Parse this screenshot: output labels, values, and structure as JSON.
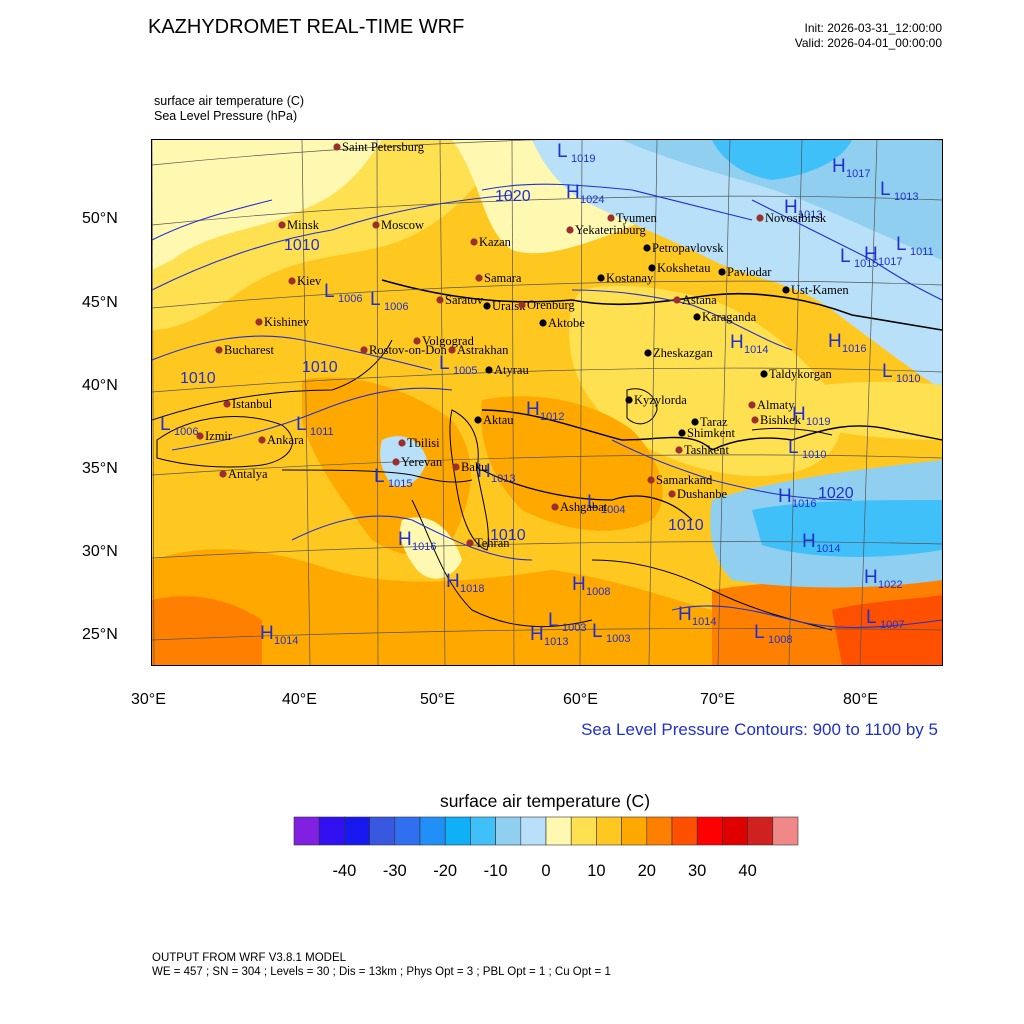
{
  "title": "KAZHYDROMET REAL-TIME WRF",
  "init": "Init: 2026-03-31_12:00:00",
  "valid": "Valid: 2026-04-01_00:00:00",
  "var1": "surface air temperature   (C)",
  "var2": "Sea Level Pressure   (hPa)",
  "lat_ticks": [
    "50°N",
    "45°N",
    "40°N",
    "35°N",
    "30°N",
    "25°N"
  ],
  "lon_ticks": [
    "30°E",
    "40°E",
    "50°E",
    "60°E",
    "70°E",
    "80°E"
  ],
  "contour_note": "Sea Level Pressure Contours: 900 to 1100 by 5",
  "colorbar": {
    "title": "surface air temperature  (C)",
    "colors": [
      "#8020e0",
      "#3010f0",
      "#1818f0",
      "#3858e0",
      "#3070f0",
      "#2090f8",
      "#10b0f8",
      "#40c0f8",
      "#90cff0",
      "#b8e0f8",
      "#fff8b0",
      "#ffe050",
      "#ffc820",
      "#ffa800",
      "#ff8000",
      "#ff5000",
      "#ff0000",
      "#e00000",
      "#d02020",
      "#f08888"
    ],
    "labels": [
      "-40",
      "-30",
      "-20",
      "-10",
      "0",
      "10",
      "20",
      "30",
      "40"
    ]
  },
  "cities": [
    {
      "name": "Saint Petersburg",
      "c": "#9b2f2f"
    },
    {
      "name": "Minsk",
      "c": "#9b2f2f"
    },
    {
      "name": "Moscow",
      "c": "#9b2f2f"
    },
    {
      "name": "Kazan",
      "c": "#9b2f2f"
    },
    {
      "name": "Tyumen",
      "c": "#9b2f2f"
    },
    {
      "name": "Yekaterinburg",
      "c": "#9b2f2f"
    },
    {
      "name": "Novosibirsk",
      "c": "#9b2f2f"
    },
    {
      "name": "Kiev",
      "c": "#9b2f2f"
    },
    {
      "name": "Samara",
      "c": "#9b2f2f"
    },
    {
      "name": "Petropavlovsk",
      "c": "#000"
    },
    {
      "name": "Kostanay",
      "c": "#000"
    },
    {
      "name": "Kokshetau",
      "c": "#000"
    },
    {
      "name": "Pavlodar",
      "c": "#000"
    },
    {
      "name": "Ust-Kamen",
      "c": "#000"
    },
    {
      "name": "Astana",
      "c": "#9b2f2f"
    },
    {
      "name": "Karaganda",
      "c": "#000"
    },
    {
      "name": "Kishinev",
      "c": "#9b2f2f"
    },
    {
      "name": "Saratov",
      "c": "#9b2f2f"
    },
    {
      "name": "Uralsk",
      "c": "#000"
    },
    {
      "name": "Orenburg",
      "c": "#9b2f2f"
    },
    {
      "name": "Aktobe",
      "c": "#000"
    },
    {
      "name": "Bucharest",
      "c": "#9b2f2f"
    },
    {
      "name": "Rostov-on-Don",
      "c": "#9b2f2f"
    },
    {
      "name": "Volgograd",
      "c": "#9b2f2f"
    },
    {
      "name": "Astrakhan",
      "c": "#9b2f2f"
    },
    {
      "name": "Atyrau",
      "c": "#000"
    },
    {
      "name": "Zheskazgan",
      "c": "#000"
    },
    {
      "name": "Taldykorgan",
      "c": "#000"
    },
    {
      "name": "Istanbul",
      "c": "#9b2f2f"
    },
    {
      "name": "Aktau",
      "c": "#000"
    },
    {
      "name": "Kyzylorda",
      "c": "#000"
    },
    {
      "name": "Almaty",
      "c": "#9b2f2f"
    },
    {
      "name": "Izmir",
      "c": "#9b2f2f"
    },
    {
      "name": "Ankara",
      "c": "#9b2f2f"
    },
    {
      "name": "Tbilisi",
      "c": "#9b2f2f"
    },
    {
      "name": "Taraz",
      "c": "#000"
    },
    {
      "name": "Bishkek",
      "c": "#9b2f2f"
    },
    {
      "name": "Shimkent",
      "c": "#000"
    },
    {
      "name": "Tashkent",
      "c": "#9b2f2f"
    },
    {
      "name": "Yerevan",
      "c": "#9b2f2f"
    },
    {
      "name": "Baku",
      "c": "#9b2f2f"
    },
    {
      "name": "Antalya",
      "c": "#9b2f2f"
    },
    {
      "name": "Samarkand",
      "c": "#9b2f2f"
    },
    {
      "name": "Dushanbe",
      "c": "#9b2f2f"
    },
    {
      "name": "Ashgabat",
      "c": "#9b2f2f"
    },
    {
      "name": "Tehran",
      "c": "#9b2f2f"
    }
  ],
  "pressure_marks": [
    {
      "t": "L",
      "v": "1019"
    },
    {
      "t": "H",
      "v": "1024"
    },
    {
      "t": "H",
      "v": "1017"
    },
    {
      "t": "L",
      "v": "1013"
    },
    {
      "t": "H",
      "v": "1013"
    },
    {
      "t": "L",
      "v": "1015"
    },
    {
      "t": "H",
      "v": "1017"
    },
    {
      "t": "L",
      "v": "1006"
    },
    {
      "t": "L",
      "v": "1006"
    },
    {
      "t": "L",
      "v": "1011"
    },
    {
      "t": "H",
      "v": "1014"
    },
    {
      "t": "H",
      "v": "1016"
    },
    {
      "t": "L",
      "v": "1005"
    },
    {
      "t": "L",
      "v": "1010"
    },
    {
      "t": "H",
      "v": "1012"
    },
    {
      "t": "L",
      "v": "1006"
    },
    {
      "t": "L",
      "v": "1011"
    },
    {
      "t": "H",
      "v": "1019"
    },
    {
      "t": "L",
      "v": "1010"
    },
    {
      "t": "H",
      "v": "1013"
    },
    {
      "t": "L",
      "v": "1004"
    },
    {
      "t": "H",
      "v": "1016"
    },
    {
      "t": "H",
      "v": "1016"
    },
    {
      "t": "H",
      "v": "1018"
    },
    {
      "t": "H",
      "v": "1008"
    },
    {
      "t": "L",
      "v": "1003"
    },
    {
      "t": "L",
      "v": "1003"
    },
    {
      "t": "H",
      "v": "1013"
    },
    {
      "t": "H",
      "v": "1014"
    },
    {
      "t": "L",
      "v": "1008"
    },
    {
      "t": "H",
      "v": "1014"
    },
    {
      "t": "L",
      "v": "1007"
    },
    {
      "t": "H",
      "v": "1022"
    },
    {
      "t": "H",
      "v": "1014"
    },
    {
      "t": "L",
      "v": "1015"
    }
  ],
  "contour_labels": [
    "1020",
    "1010",
    "1010",
    "1010",
    "1010",
    "1020",
    "1010"
  ],
  "footer": {
    "line1": "OUTPUT FROM WRF V3.8.1 MODEL",
    "line2": "WE = 457 ; SN = 304 ; Levels = 30 ; Dis = 13km ; Phys Opt = 3 ; PBL Opt = 1 ; Cu Opt = 1"
  }
}
